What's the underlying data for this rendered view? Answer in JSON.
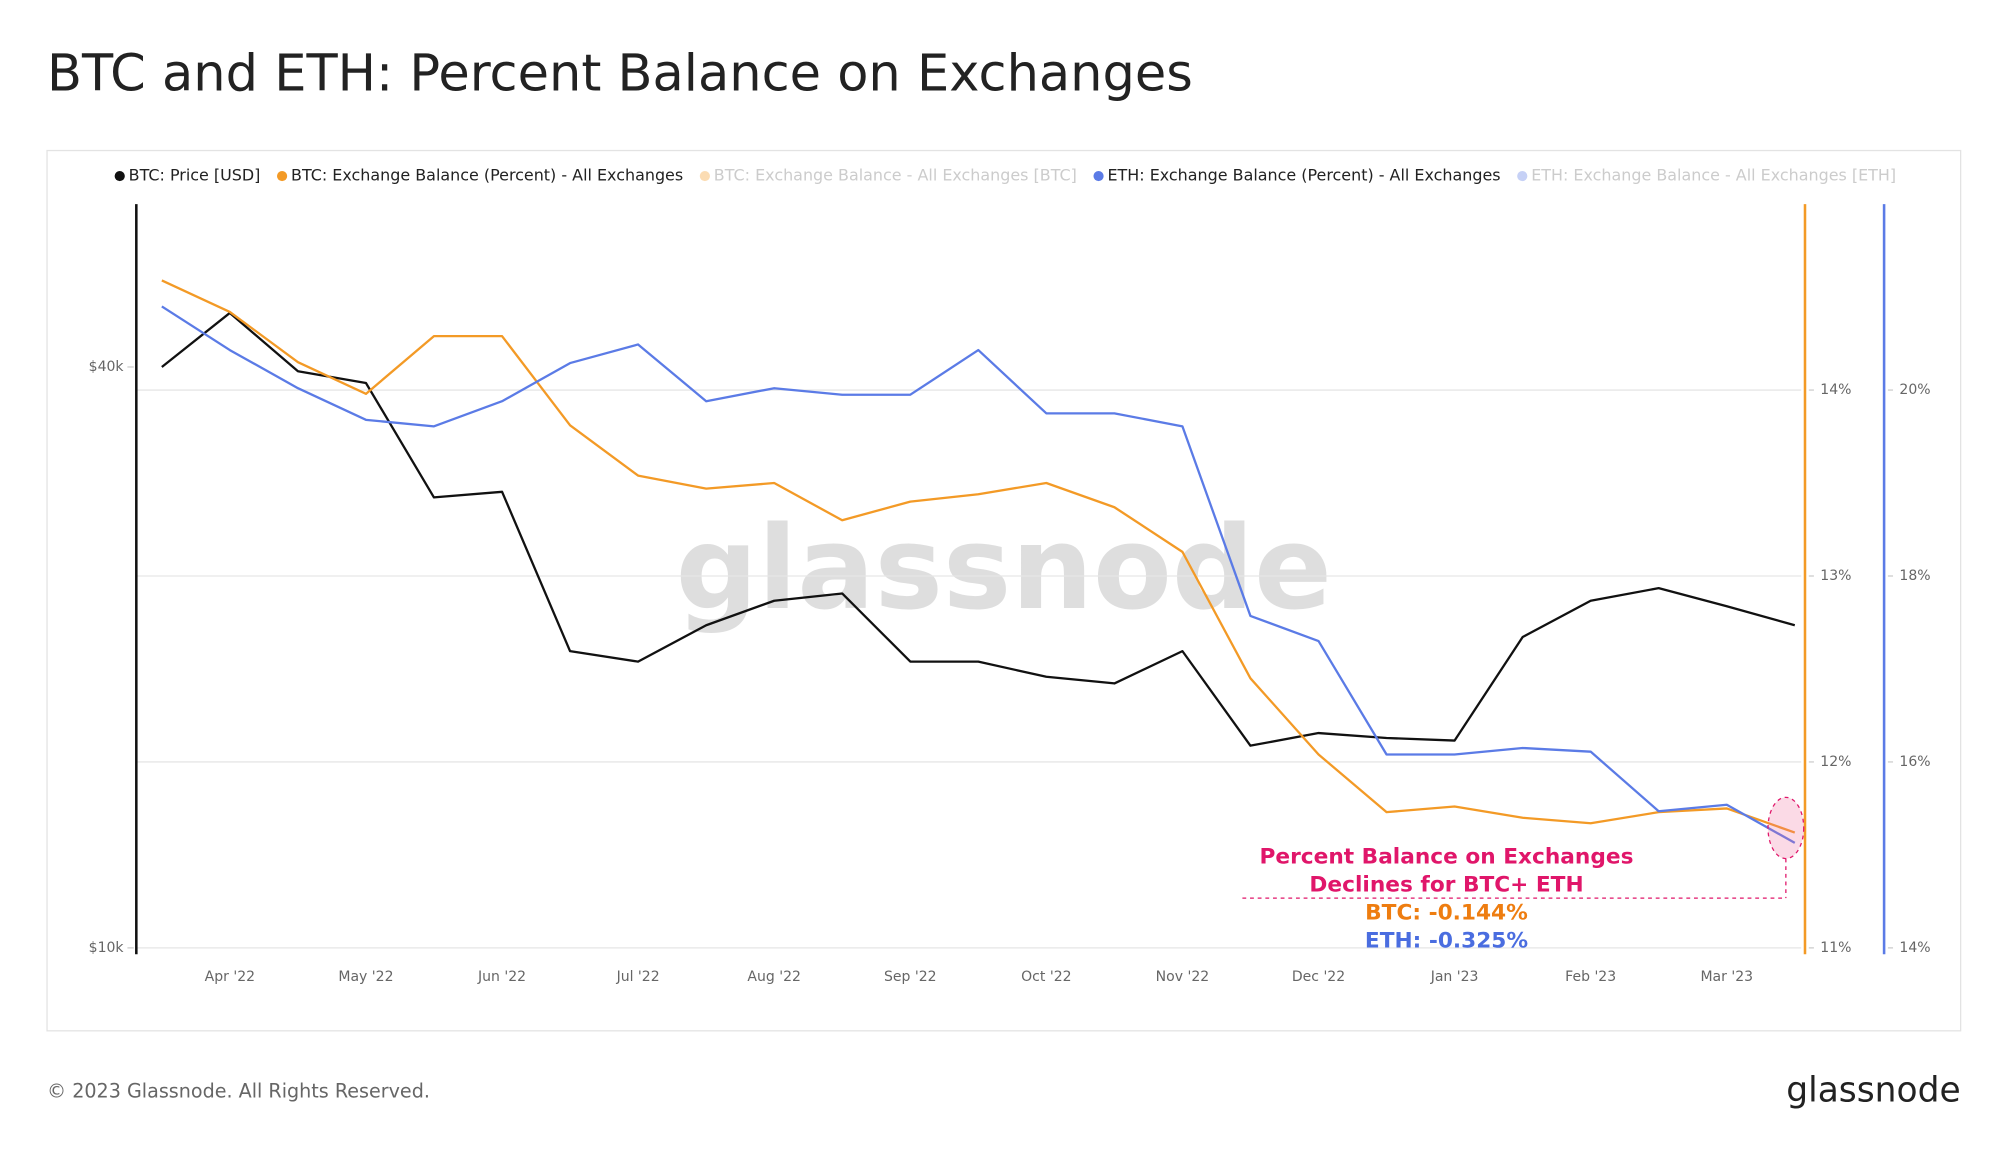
{
  "chart_data": {
    "type": "line",
    "title": "BTC and ETH: Percent Balance on Exchanges",
    "x": [
      null,
      "Apr '22",
      null,
      "May '22",
      null,
      "Jun '22",
      null,
      "Jul '22",
      null,
      "Aug '22",
      null,
      "Sep '22",
      null,
      "Oct '22",
      null,
      "Nov '22",
      null,
      "Dec '22",
      null,
      "Jan '23",
      null,
      "Feb '23",
      null,
      "Mar '23",
      null
    ],
    "series": [
      {
        "name": "BTC: Price [USD]",
        "color": "#111111",
        "axis": "y",
        "values": [
          40000,
          45500,
          39600,
          38500,
          29300,
          29700,
          20300,
          19800,
          21600,
          22900,
          23300,
          19800,
          19800,
          19100,
          18800,
          20300,
          16200,
          16700,
          16500,
          16400,
          21000,
          22900,
          23600,
          22600,
          21600
        ]
      },
      {
        "name": "BTC: Exchange Balance (Percent) - All Exchanges",
        "color": "#f39a26",
        "axis": "y2",
        "values": [
          14.59,
          14.42,
          14.15,
          13.98,
          14.29,
          14.29,
          13.81,
          13.54,
          13.47,
          13.5,
          13.3,
          13.4,
          13.44,
          13.5,
          13.37,
          13.13,
          12.45,
          12.04,
          11.73,
          11.76,
          11.7,
          11.67,
          11.73,
          11.75,
          11.62
        ]
      },
      {
        "name": "BTC: Exchange Balance - All Exchanges [BTC]",
        "color": "#f39a26",
        "hidden": true
      },
      {
        "name": "ETH: Exchange Balance (Percent) - All Exchanges",
        "color": "#5b7be6",
        "axis": "y3",
        "values": [
          20.9,
          20.43,
          20.02,
          19.68,
          19.61,
          19.88,
          20.29,
          20.49,
          19.88,
          20.02,
          19.95,
          19.95,
          20.43,
          19.75,
          19.75,
          19.61,
          17.57,
          17.3,
          16.08,
          16.08,
          16.15,
          16.11,
          15.47,
          15.54,
          15.13
        ]
      },
      {
        "name": "ETH: Exchange Balance - All Exchanges [ETH]",
        "color": "#5b7be6",
        "hidden": true
      }
    ],
    "ylim": [
      10000,
      59000
    ],
    "log_y": true,
    "yticks": [
      {
        "value": 10000,
        "label": "$10k"
      },
      {
        "value": 40000,
        "label": "$40k"
      }
    ],
    "y2lim": [
      11,
      15
    ],
    "y2ticks": [
      {
        "value": 11,
        "label": "11%"
      },
      {
        "value": 12,
        "label": "12%"
      },
      {
        "value": 13,
        "label": "13%"
      },
      {
        "value": 14,
        "label": "14%"
      }
    ],
    "y3lim": [
      14,
      22
    ],
    "y3ticks": [
      {
        "value": 14,
        "label": "14%"
      },
      {
        "value": 16,
        "label": "16%"
      },
      {
        "value": 18,
        "label": "18%"
      },
      {
        "value": 20,
        "label": "20%"
      }
    ],
    "grid": true,
    "watermark": "glassnode",
    "annotation": {
      "lines": [
        "Percent Balance on Exchanges",
        "Declines for BTC+ ETH"
      ],
      "btc": "BTC: -0.144%",
      "eth": "ETH: -0.325%"
    },
    "footer": "© 2023 Glassnode. All Rights Reserved.",
    "logo": "glassnode"
  }
}
